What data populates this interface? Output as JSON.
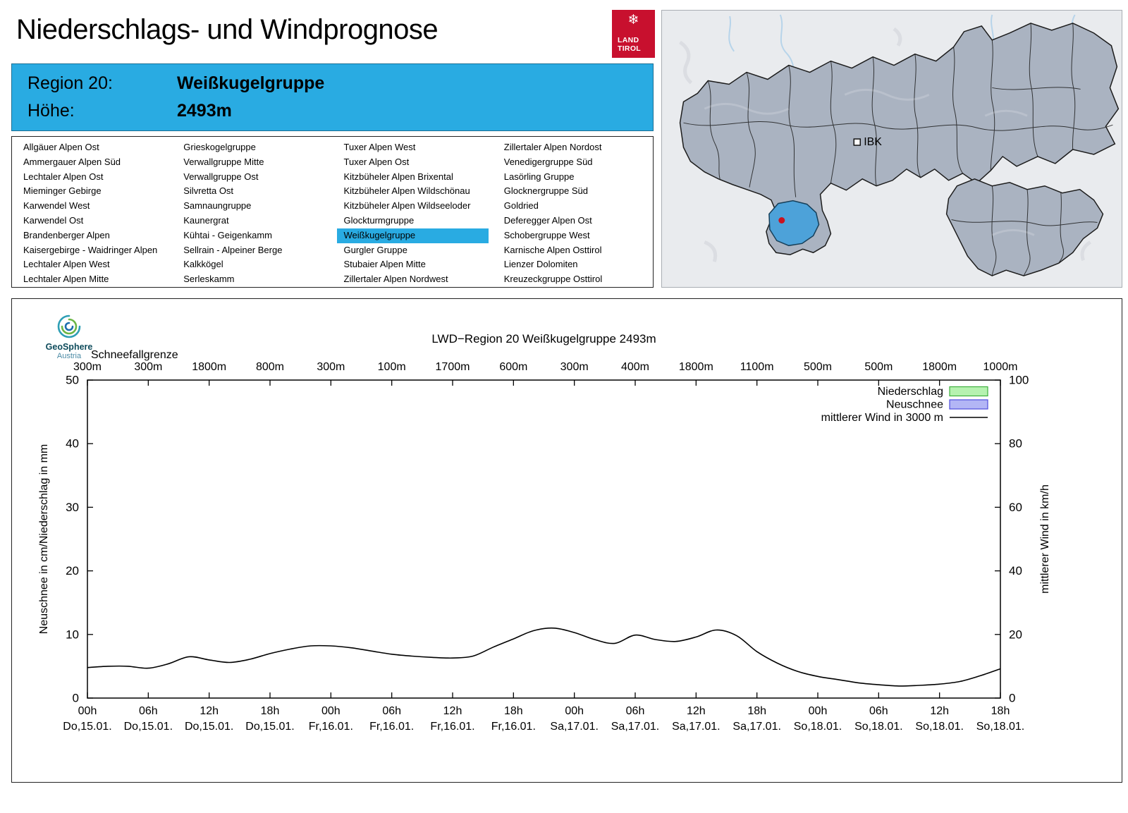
{
  "header": {
    "title": "Niederschlags- und Windprognose",
    "logo": {
      "line1": "LAND",
      "line2": "TIROL",
      "color": "#c8102e",
      "snowflake_icon": "snowflake"
    }
  },
  "region_header": {
    "region_label": "Region 20:",
    "region_value": "Weißkugelgruppe",
    "altitude_label": "Höhe:",
    "altitude_value": "2493m",
    "accent_color": "#29abe2"
  },
  "map": {
    "city_label": "IBK",
    "region_fill": "#aab3c1",
    "highlight_fill": "#4da2d9",
    "marker_color": "#c9121f"
  },
  "region_table": {
    "selected": "Weißkugelgruppe",
    "columns": [
      [
        "Allgäuer Alpen Ost",
        "Ammergauer Alpen Süd",
        "Lechtaler Alpen Ost",
        "Mieminger Gebirge",
        "Karwendel West",
        "Karwendel Ost",
        "Brandenberger Alpen",
        "Kaisergebirge - Waidringer Alpen",
        "Lechtaler Alpen West",
        "Lechtaler Alpen Mitte"
      ],
      [
        "Grieskogelgruppe",
        "Verwallgruppe Mitte",
        "Verwallgruppe Ost",
        "Silvretta Ost",
        "Samnaungruppe",
        "Kaunergrat",
        "Kühtai - Geigenkamm",
        "Sellrain - Alpeiner Berge",
        "Kalkkögel",
        "Serleskamm"
      ],
      [
        "Tuxer Alpen West",
        "Tuxer Alpen Ost",
        "Kitzbüheler Alpen Brixental",
        "Kitzbüheler Alpen Wildschönau",
        "Kitzbüheler Alpen Wildseeloder",
        "Glockturmgruppe",
        "Weißkugelgruppe",
        "Gurgler Gruppe",
        "Stubaier Alpen Mitte",
        "Zillertaler Alpen Nordwest"
      ],
      [
        "Zillertaler Alpen Nordost",
        "Venedigergruppe Süd",
        "Lasörling Gruppe",
        "Glocknergruppe Süd",
        "Goldried",
        "Deferegger Alpen Ost",
        "Schobergruppe West",
        "Karnische Alpen Osttirol",
        "Lienzer Dolomiten",
        "Kreuzeckgruppe Osttirol"
      ]
    ]
  },
  "chart_meta": {
    "provider_name": "GeoSphere",
    "provider_sub": "Austria"
  },
  "chart_data": {
    "type": "line",
    "title": "LWD−Region 20 Weißkugelgruppe 2493m",
    "snowfall_limit_label": "Schneefallgrenze",
    "snowfall_limits_m": [
      "300m",
      "300m",
      "1800m",
      "800m",
      "300m",
      "100m",
      "1700m",
      "600m",
      "300m",
      "400m",
      "1800m",
      "1100m",
      "500m",
      "500m",
      "1800m",
      "1000m"
    ],
    "x_range_hours": [
      0,
      90
    ],
    "x_ticks": [
      {
        "time": "00h",
        "date": "Do,15.01."
      },
      {
        "time": "06h",
        "date": "Do,15.01."
      },
      {
        "time": "12h",
        "date": "Do,15.01."
      },
      {
        "time": "18h",
        "date": "Do,15.01."
      },
      {
        "time": "00h",
        "date": "Fr,16.01."
      },
      {
        "time": "06h",
        "date": "Fr,16.01."
      },
      {
        "time": "12h",
        "date": "Fr,16.01."
      },
      {
        "time": "18h",
        "date": "Fr,16.01."
      },
      {
        "time": "00h",
        "date": "Sa,17.01."
      },
      {
        "time": "06h",
        "date": "Sa,17.01."
      },
      {
        "time": "12h",
        "date": "Sa,17.01."
      },
      {
        "time": "18h",
        "date": "Sa,17.01."
      },
      {
        "time": "00h",
        "date": "So,18.01."
      },
      {
        "time": "06h",
        "date": "So,18.01."
      },
      {
        "time": "12h",
        "date": "So,18.01."
      },
      {
        "time": "18h",
        "date": "So,18.01."
      }
    ],
    "left_axis": {
      "label": "Neuschnee in cm/Niederschlag in mm",
      "min": 0,
      "max": 50,
      "ticks": [
        0,
        10,
        20,
        30,
        40,
        50
      ]
    },
    "right_axis": {
      "label": "mittlerer Wind in km/h",
      "min": 0,
      "max": 100,
      "ticks": [
        0,
        20,
        40,
        60,
        80,
        100
      ]
    },
    "layout_hints": {
      "grid": false,
      "legend_position": "top-right",
      "background": "#ffffff"
    },
    "legend": [
      {
        "label": "Niederschlag",
        "swatch": "box",
        "fill": "#b6f2b0",
        "stroke": "#3db03d"
      },
      {
        "label": "Neuschnee",
        "swatch": "box",
        "fill": "#b3b6f5",
        "stroke": "#4d4ddb"
      },
      {
        "label": "mittlerer Wind in 3000 m",
        "swatch": "line",
        "stroke": "#000000"
      }
    ],
    "series": [
      {
        "name": "Niederschlag",
        "unit": "mm",
        "axis": "left",
        "values_per_6h": [
          0,
          0,
          0,
          0,
          0,
          0,
          0,
          0,
          0,
          0,
          0,
          0,
          0,
          0,
          0,
          0
        ]
      },
      {
        "name": "Neuschnee",
        "unit": "cm",
        "axis": "left",
        "values_per_6h": [
          0,
          0,
          0,
          0,
          0,
          0,
          0,
          0,
          0,
          0,
          0,
          0,
          0,
          0,
          0,
          0
        ]
      },
      {
        "name": "mittlerer Wind in 3000 m",
        "unit": "km/h",
        "axis": "right",
        "x_hours": [
          0,
          2,
          4,
          6,
          8,
          10,
          12,
          14,
          16,
          18,
          20,
          22,
          24,
          26,
          28,
          30,
          32,
          34,
          36,
          38,
          40,
          42,
          44,
          46,
          48,
          50,
          52,
          54,
          56,
          58,
          60,
          62,
          64,
          66,
          68,
          70,
          72,
          74,
          76,
          78,
          80,
          82,
          84,
          86,
          88,
          90
        ],
        "values": [
          9.6,
          10,
          10,
          9.4,
          10.8,
          13,
          12,
          11.2,
          12.2,
          14,
          15.4,
          16.4,
          16.4,
          15.8,
          14.8,
          13.8,
          13.2,
          12.8,
          12.6,
          13.2,
          16,
          18.6,
          21.2,
          22,
          20.6,
          18.4,
          17.2,
          19.8,
          18.4,
          17.8,
          19.2,
          21.4,
          19.6,
          14.6,
          11,
          8.4,
          6.8,
          5.8,
          4.8,
          4.2,
          3.8,
          4,
          4.4,
          5.2,
          7,
          9.2
        ]
      }
    ]
  }
}
